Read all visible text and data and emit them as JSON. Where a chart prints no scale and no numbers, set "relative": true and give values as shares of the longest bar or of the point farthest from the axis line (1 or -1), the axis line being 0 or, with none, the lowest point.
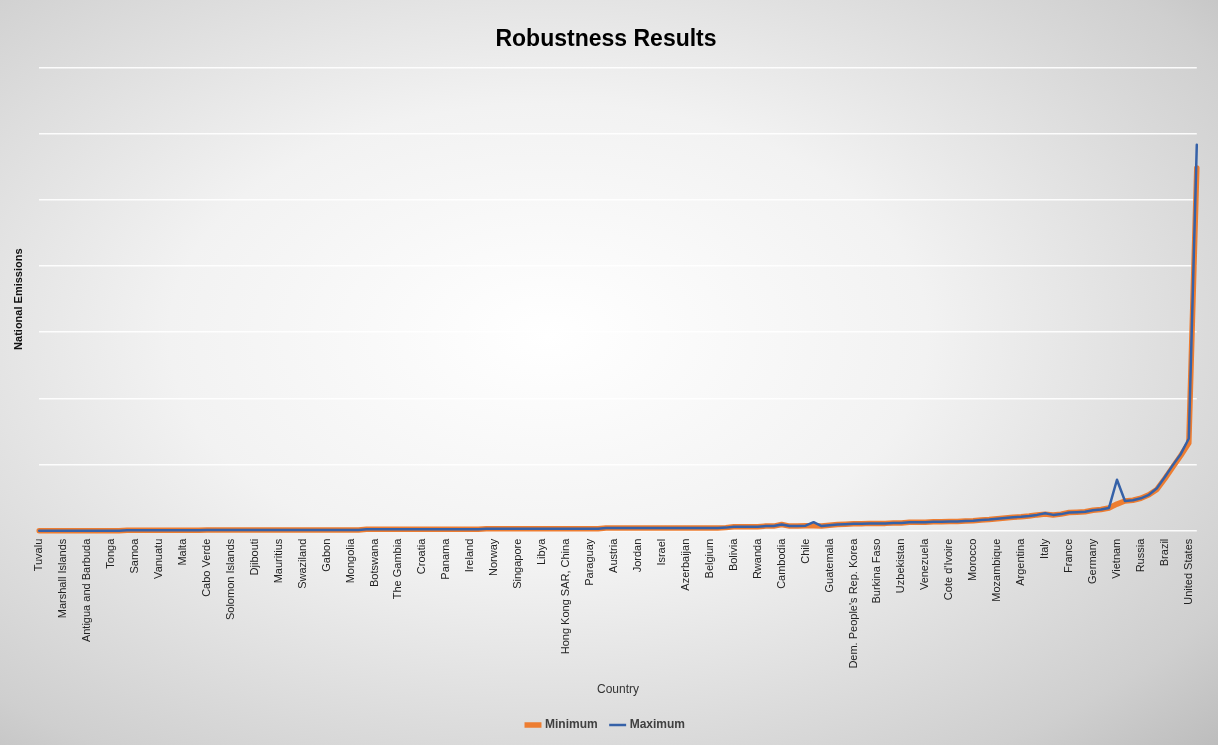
{
  "chart_data": {
    "type": "line",
    "title": "Robustness Results",
    "xlabel": "Country",
    "ylabel": "National Emissions",
    "relative": true,
    "grid": "y",
    "legend": "bottom",
    "marker": "none",
    "categories": [
      "Tuvalu",
      null,
      null,
      "Marshall Islands",
      null,
      null,
      "Antigua and Barbuda",
      null,
      null,
      "Tonga",
      null,
      null,
      "Samoa",
      null,
      null,
      "Vanuatu",
      null,
      null,
      "Malta",
      null,
      null,
      "Cabo Verde",
      null,
      null,
      "Solomon Islands",
      null,
      null,
      "Djibouti",
      null,
      null,
      "Mauritius",
      null,
      null,
      "Swaziland",
      null,
      null,
      "Gabon",
      null,
      null,
      "Mongolia",
      null,
      null,
      "Botswana",
      null,
      null,
      "The Gambia",
      null,
      null,
      "Croatia",
      null,
      null,
      "Panama",
      null,
      null,
      "Ireland",
      null,
      null,
      "Norway",
      null,
      null,
      "Singapore",
      null,
      null,
      "Libya",
      null,
      null,
      "Hong Kong SAR, China",
      null,
      null,
      "Paraguay",
      null,
      null,
      "Austria",
      null,
      null,
      "Jordan",
      null,
      null,
      "Israel",
      null,
      null,
      "Azerbaijan",
      null,
      null,
      "Belgium",
      null,
      null,
      "Bolivia",
      null,
      null,
      "Rwanda",
      null,
      null,
      "Cambodia",
      null,
      null,
      "Chile",
      null,
      null,
      "Guatemala",
      null,
      null,
      "Dem. People's Rep. Korea",
      null,
      null,
      "Burkina Faso",
      null,
      null,
      "Uzbekistan",
      null,
      null,
      "Venezuela",
      null,
      null,
      "Cote d'Ivoire",
      null,
      null,
      "Morocco",
      null,
      null,
      "Mozambique",
      null,
      null,
      "Argentina",
      null,
      null,
      "Italy",
      null,
      null,
      "France",
      null,
      null,
      "Germany",
      null,
      null,
      "Vietnam",
      null,
      null,
      "Russia",
      null,
      null,
      "Brazil",
      null,
      null,
      "United States",
      null
    ],
    "series": [
      {
        "name": "Minimum",
        "color": "#ed7d31",
        "values": [
          0,
          0,
          0,
          0,
          0,
          0,
          0,
          0,
          0,
          0,
          0,
          0.001,
          0.001,
          0.001,
          0.001,
          0.001,
          0.001,
          0.001,
          0.001,
          0.001,
          0.001,
          0.002,
          0.002,
          0.002,
          0.002,
          0.002,
          0.002,
          0.002,
          0.002,
          0.002,
          0.002,
          0.002,
          0.002,
          0.002,
          0.002,
          0.002,
          0.002,
          0.002,
          0.002,
          0.002,
          0.002,
          0.004,
          0.004,
          0.004,
          0.004,
          0.004,
          0.004,
          0.004,
          0.004,
          0.004,
          0.004,
          0.004,
          0.004,
          0.004,
          0.004,
          0.004,
          0.005,
          0.005,
          0.005,
          0.005,
          0.005,
          0.005,
          0.005,
          0.005,
          0.005,
          0.005,
          0.005,
          0.005,
          0.005,
          0.005,
          0.005,
          0.007,
          0.007,
          0.007,
          0.007,
          0.007,
          0.007,
          0.007,
          0.007,
          0.007,
          0.007,
          0.007,
          0.007,
          0.007,
          0.007,
          0.007,
          0.008,
          0.01,
          0.01,
          0.01,
          0.01,
          0.012,
          0.012,
          0.016,
          0.012,
          0.012,
          0.013,
          0.013,
          0.012,
          0.014,
          0.016,
          0.017,
          0.018,
          0.018,
          0.019,
          0.019,
          0.019,
          0.02,
          0.02,
          0.022,
          0.022,
          0.022,
          0.023,
          0.023,
          0.024,
          0.024,
          0.025,
          0.026,
          0.028,
          0.029,
          0.031,
          0.033,
          0.035,
          0.036,
          0.038,
          0.041,
          0.043,
          0.041,
          0.043,
          0.047,
          0.048,
          0.049,
          0.053,
          0.055,
          0.059,
          0.069,
          0.077,
          0.079,
          0.084,
          0.093,
          0.107,
          0.135,
          0.165,
          0.195,
          0.227,
          0.94
        ]
      },
      {
        "name": "Maximum",
        "color": "#3561a8",
        "values": [
          0,
          0,
          0,
          0,
          0,
          0,
          0,
          0,
          0,
          0,
          0,
          0.001,
          0.001,
          0.001,
          0.001,
          0.001,
          0.001,
          0.001,
          0.001,
          0.001,
          0.001,
          0.002,
          0.002,
          0.002,
          0.002,
          0.002,
          0.002,
          0.002,
          0.002,
          0.002,
          0.002,
          0.002,
          0.002,
          0.002,
          0.002,
          0.002,
          0.002,
          0.002,
          0.002,
          0.002,
          0.002,
          0.004,
          0.004,
          0.004,
          0.004,
          0.004,
          0.004,
          0.004,
          0.004,
          0.004,
          0.004,
          0.004,
          0.004,
          0.004,
          0.004,
          0.004,
          0.005,
          0.005,
          0.005,
          0.005,
          0.005,
          0.005,
          0.005,
          0.005,
          0.005,
          0.005,
          0.005,
          0.005,
          0.005,
          0.005,
          0.005,
          0.007,
          0.007,
          0.007,
          0.007,
          0.007,
          0.007,
          0.007,
          0.007,
          0.007,
          0.007,
          0.007,
          0.007,
          0.007,
          0.007,
          0.007,
          0.008,
          0.01,
          0.01,
          0.01,
          0.01,
          0.012,
          0.012,
          0.016,
          0.012,
          0.012,
          0.013,
          0.022,
          0.012,
          0.014,
          0.016,
          0.017,
          0.018,
          0.018,
          0.019,
          0.019,
          0.019,
          0.02,
          0.02,
          0.022,
          0.022,
          0.022,
          0.023,
          0.023,
          0.024,
          0.024,
          0.025,
          0.026,
          0.028,
          0.029,
          0.031,
          0.033,
          0.035,
          0.036,
          0.038,
          0.041,
          0.045,
          0.041,
          0.043,
          0.047,
          0.048,
          0.049,
          0.053,
          0.055,
          0.059,
          0.132,
          0.077,
          0.079,
          0.084,
          0.093,
          0.11,
          0.139,
          0.17,
          0.199,
          0.239,
          1
        ]
      }
    ]
  }
}
